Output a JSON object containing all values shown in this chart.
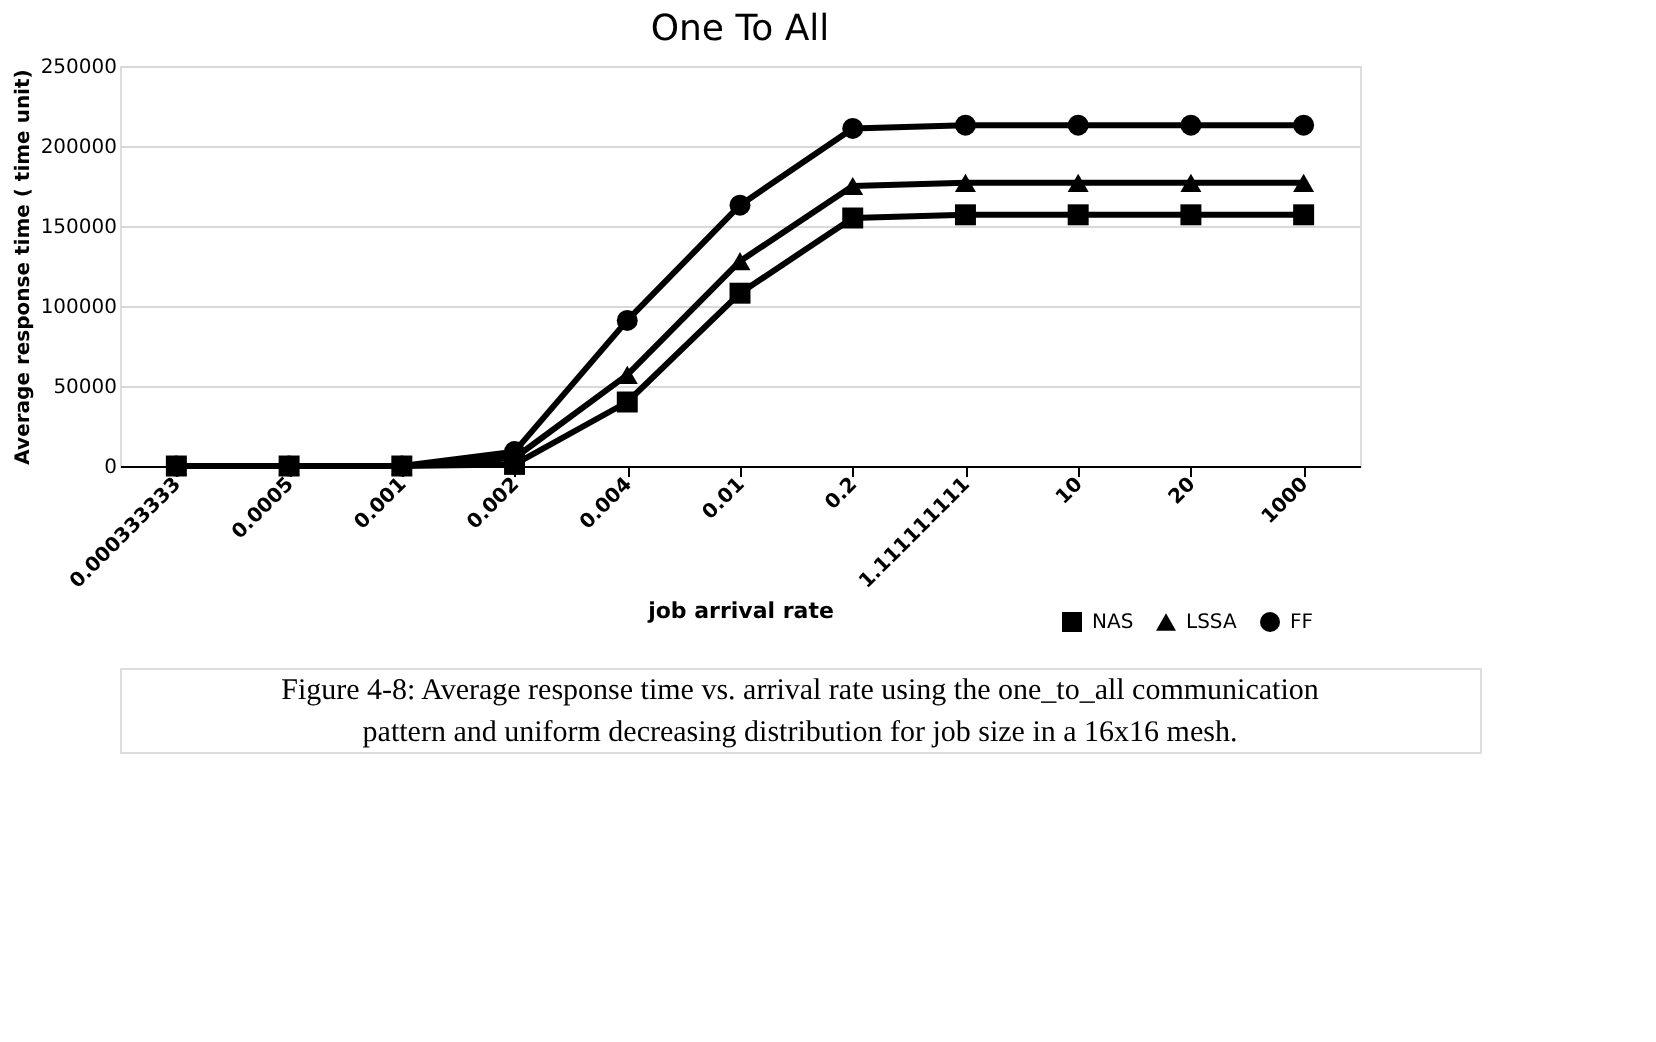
{
  "chart_data": {
    "type": "line",
    "title": "One To All",
    "xlabel": "job arrival rate",
    "ylabel": "Average response time ( time unit)",
    "categories": [
      "0.000333333",
      "0.0005",
      "0.001",
      "0.002",
      "0.004",
      "0.01",
      "0.2",
      "1.111111111",
      "10",
      "20",
      "1000"
    ],
    "series": [
      {
        "name": "NAS",
        "color": "#000000",
        "marker": "square",
        "values": [
          0,
          0,
          0,
          1000,
          40000,
          108000,
          155000,
          157000,
          157000,
          157000,
          157000
        ]
      },
      {
        "name": "LSSA",
        "color": "#000000",
        "marker": "triangle",
        "values": [
          0,
          0,
          0,
          5000,
          57000,
          128000,
          175000,
          177000,
          177000,
          177000,
          177000
        ]
      },
      {
        "name": "FF",
        "color": "#000000",
        "marker": "circle",
        "values": [
          0,
          0,
          0,
          9000,
          91000,
          163000,
          211000,
          213000,
          213000,
          213000,
          213000
        ]
      }
    ],
    "ylim": [
      0,
      250000
    ],
    "yticks": [
      0,
      50000,
      100000,
      150000,
      200000,
      250000
    ],
    "grid": "y",
    "legend": "bottom right",
    "line_style": "solid",
    "annotations": [
      "Figure 4-8: Average response time vs. arrival rate using the one_to_all communication",
      "pattern and  uniform decreasing distribution for job size in a 16x16 mesh."
    ]
  }
}
